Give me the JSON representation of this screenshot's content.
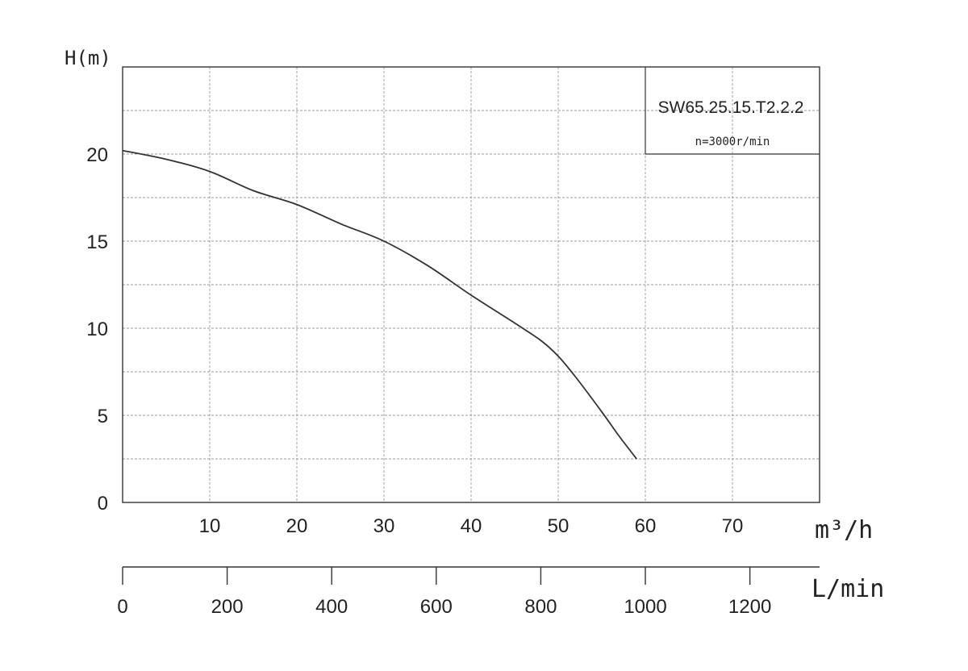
{
  "chart_data": {
    "type": "line",
    "title": "",
    "model": "SW65.25.15.T2.2.2",
    "speed": "n=3000r/min",
    "ylabel": "H(m)",
    "xlabel": "m³/h",
    "x2label": "L/min",
    "xlim": [
      0,
      80
    ],
    "ylim": [
      0,
      25
    ],
    "x2lim": [
      0,
      1333.3
    ],
    "x_ticks": [
      10,
      20,
      30,
      40,
      50,
      60,
      70
    ],
    "y_ticks": [
      0,
      5,
      10,
      15,
      20
    ],
    "x2_ticks": [
      0,
      200,
      400,
      600,
      800,
      1000,
      1200
    ],
    "grid": true,
    "series": [
      {
        "x": [
          0,
          5,
          10,
          15,
          20,
          25,
          30,
          35,
          40,
          45,
          48,
          50,
          52,
          55,
          57,
          59
        ],
        "y": [
          20.2,
          19.7,
          19.0,
          17.9,
          17.1,
          16.0,
          15.0,
          13.6,
          11.9,
          10.3,
          9.3,
          8.4,
          7.2,
          5.2,
          3.8,
          2.5
        ]
      }
    ]
  }
}
